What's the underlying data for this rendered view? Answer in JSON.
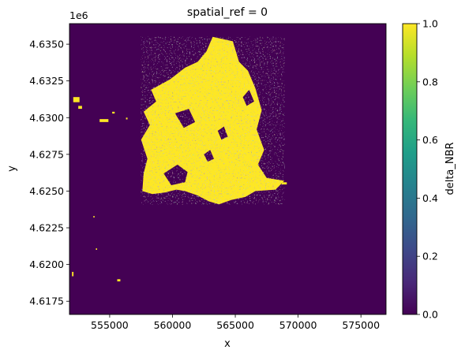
{
  "chart_data": {
    "type": "heatmap",
    "title": "spatial_ref = 0",
    "xlabel": "x",
    "ylabel": "y",
    "y_offset_label": "1e6",
    "xlim": [
      551800,
      577000
    ],
    "ylim": [
      4616600,
      4636400
    ],
    "xticks": [
      555000,
      560000,
      565000,
      570000,
      575000
    ],
    "xtick_labels": [
      "555000",
      "560000",
      "565000",
      "570000",
      "575000"
    ],
    "yticks": [
      4.6175,
      4.62,
      4.6225,
      4.625,
      4.6275,
      4.63,
      4.6325,
      4.635
    ],
    "ytick_labels": [
      "4.6175",
      "4.6200",
      "4.6225",
      "4.6250",
      "4.6275",
      "4.6300",
      "4.6325",
      "4.6350"
    ],
    "colorbar": {
      "label": "delta_NBR",
      "range": [
        0.0,
        1.0
      ],
      "ticks": [
        0.0,
        0.2,
        0.4,
        0.6,
        0.8,
        1.0
      ],
      "tick_labels": [
        "0.0",
        "0.2",
        "0.4",
        "0.6",
        "0.8",
        "1.0"
      ],
      "colormap": "viridis"
    },
    "colors": {
      "background_value_color": "#440154",
      "burned_value_color": "#fde725",
      "viridis_stops": [
        "#440154",
        "#482878",
        "#3e4989",
        "#31688e",
        "#26828e",
        "#1f9e89",
        "#35b779",
        "#6ece58",
        "#b5de2b",
        "#fde725"
      ]
    },
    "burn_region_approx": {
      "value": 1,
      "x_range": [
        557500,
        569000
      ],
      "y_range": [
        4623800,
        4635500
      ]
    },
    "grid": false
  }
}
